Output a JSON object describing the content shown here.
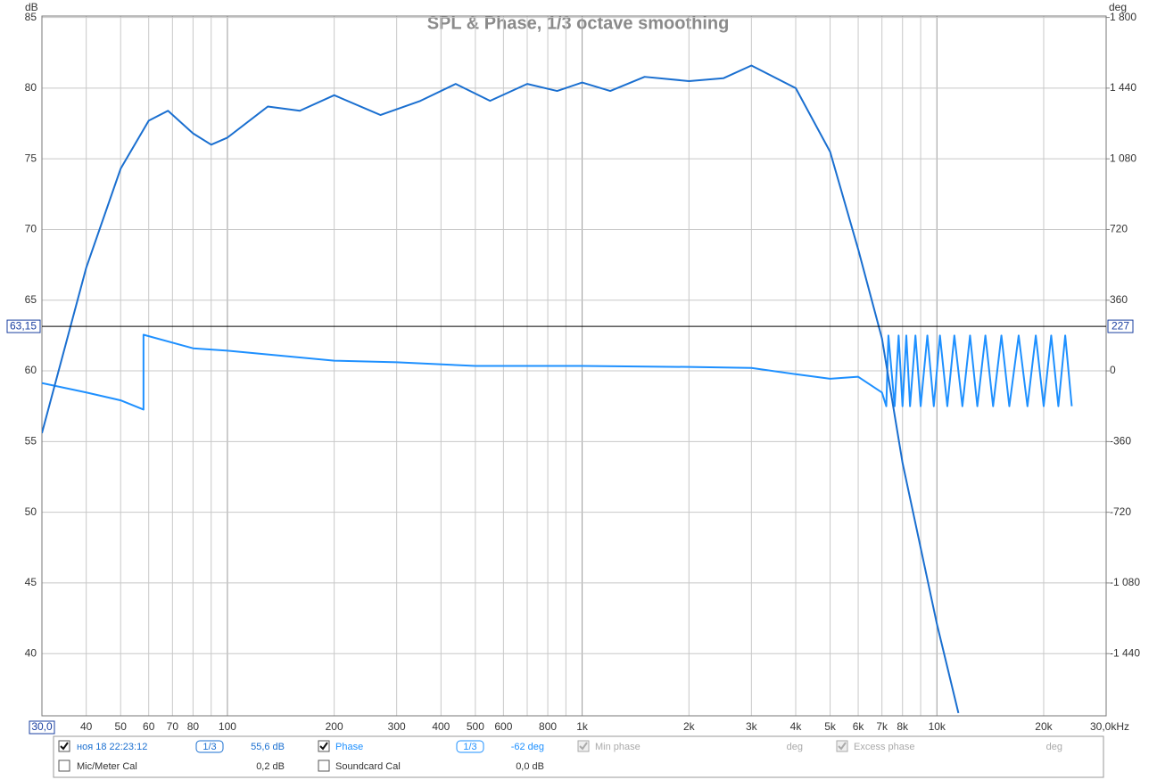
{
  "chart_data": {
    "type": "line",
    "title": "SPL & Phase, 1/3 octave smoothing",
    "y_label": "dB",
    "y2_label": "deg",
    "xscale": "log",
    "grid": true,
    "xlim": [
      30,
      30000
    ],
    "ylim": [
      35.6,
      85.1
    ],
    "y2lim": [
      -1756.8,
      1807.2
    ],
    "xticks": [
      {
        "value": 30,
        "label": "30,0"
      },
      40,
      50,
      60,
      70,
      80,
      100,
      200,
      300,
      400,
      500,
      600,
      800,
      {
        "value": 1000,
        "label": "1k"
      },
      {
        "value": 2000,
        "label": "2k"
      },
      {
        "value": 3000,
        "label": "3k"
      },
      {
        "value": 4000,
        "label": "4k"
      },
      {
        "value": 5000,
        "label": "5k"
      },
      {
        "value": 6000,
        "label": "6k"
      },
      {
        "value": 7000,
        "label": "7k"
      },
      {
        "value": 8000,
        "label": "8k"
      },
      {
        "value": 10000,
        "label": "10k"
      },
      {
        "value": 20000,
        "label": "20k"
      },
      {
        "value": 30000,
        "label": "30,0kHz"
      }
    ],
    "xgrid_minor": [
      90,
      700,
      900,
      9000
    ],
    "yticks": [
      40,
      45,
      50,
      55,
      60,
      65,
      70,
      75,
      80,
      85
    ],
    "y2ticks": [
      {
        "value": -1440,
        "label": "-1 440"
      },
      {
        "value": -1080,
        "label": "-1 080"
      },
      -720,
      -360,
      0,
      360,
      720,
      {
        "value": 1080,
        "label": "1 080"
      },
      {
        "value": 1440,
        "label": "1 440"
      },
      {
        "value": 1800,
        "label": "1 800"
      }
    ],
    "cursor": {
      "value": 63.15,
      "label": "63,15",
      "y2_value": 227
    },
    "series": [
      {
        "name": "SPL",
        "color": "#1a6fd0",
        "x": [
          30,
          40,
          50,
          60,
          68,
          80,
          90,
          100,
          130,
          160,
          200,
          270,
          350,
          440,
          550,
          700,
          850,
          1000,
          1200,
          1500,
          2000,
          2500,
          3000,
          4000,
          5000,
          6000,
          7000,
          8000,
          10000,
          11500
        ],
        "values": [
          55.6,
          67.3,
          74.3,
          77.7,
          78.4,
          76.8,
          76.0,
          76.5,
          78.7,
          78.4,
          79.5,
          78.1,
          79.1,
          80.3,
          79.1,
          80.3,
          79.8,
          80.4,
          79.8,
          80.8,
          80.5,
          80.7,
          81.6,
          80.0,
          75.5,
          68.6,
          62.3,
          53.5,
          42.1,
          35.8
        ]
      },
      {
        "name": "Phase",
        "color": "#1e90ff",
        "axis": "y2",
        "x": [
          30,
          40,
          50,
          58,
          58,
          80,
          100,
          200,
          300,
          500,
          1000,
          2000,
          3000,
          4000,
          5000,
          6000,
          7000,
          7200,
          7300,
          7600,
          7800,
          8000,
          8200,
          8400,
          8700,
          9000,
          9400,
          9800,
          10200,
          10700,
          11200,
          11800,
          12400,
          13000,
          13700,
          14400,
          15200,
          16000,
          17000,
          18000,
          19000,
          20000,
          21000,
          22000,
          23000,
          24000
        ],
        "values": [
          -62,
          -110,
          -150,
          -197,
          184,
          115,
          103,
          52,
          44,
          25,
          25,
          20,
          15,
          -17,
          -40,
          -30,
          -110,
          -180,
          180,
          -180,
          180,
          -180,
          180,
          -180,
          180,
          -180,
          180,
          -180,
          180,
          -180,
          180,
          -180,
          180,
          -180,
          180,
          -180,
          180,
          -180,
          180,
          -180,
          180,
          -180,
          180,
          -180,
          180,
          -180
        ]
      }
    ]
  },
  "panel": {
    "row1": [
      "ноя 18 22:23:12",
      "1/3",
      "55,6 dB",
      "Phase",
      "1/3",
      "-62 deg",
      "Min phase",
      "deg",
      "Excess phase",
      "deg"
    ],
    "row2": [
      "Mic/Meter Cal",
      "0,2 dB",
      "Soundcard Cal",
      "0,0 dB"
    ]
  }
}
